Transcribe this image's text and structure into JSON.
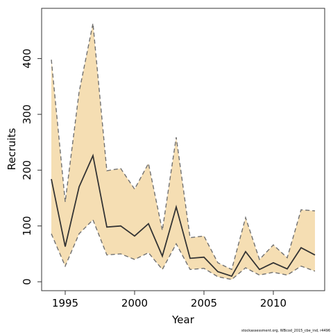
{
  "chart_data": {
    "type": "area",
    "xlabel": "Year",
    "ylabel": "Recruits",
    "xlim": [
      1993.3,
      2013.7
    ],
    "ylim": [
      -16,
      490
    ],
    "x_ticks": [
      1995,
      2000,
      2005,
      2010
    ],
    "y_ticks": [
      0,
      100,
      200,
      300,
      400
    ],
    "grid": false,
    "legend": "none",
    "x": [
      1994,
      1995,
      1996,
      1997,
      1998,
      1999,
      2000,
      2001,
      2002,
      2003,
      2004,
      2005,
      2006,
      2007,
      2008,
      2009,
      2010,
      2011,
      2012,
      2013
    ],
    "series": [
      {
        "role": "estimate",
        "values": [
          184,
          63,
          170,
          226,
          98,
          100,
          82,
          104,
          46,
          134,
          42,
          44,
          18,
          10,
          54,
          22,
          34,
          23,
          61,
          48
        ]
      },
      {
        "role": "upper",
        "values": [
          398,
          143,
          340,
          463,
          199,
          203,
          166,
          212,
          92,
          259,
          79,
          82,
          34,
          22,
          115,
          40,
          66,
          43,
          129,
          127
        ]
      },
      {
        "role": "lower",
        "values": [
          86,
          28,
          86,
          111,
          48,
          50,
          40,
          52,
          22,
          68,
          22,
          24,
          9,
          4,
          25,
          12,
          17,
          12,
          28,
          19
        ]
      }
    ],
    "colors": {
      "band": "#F5DEB3",
      "bound_line": "#707070",
      "estimate_line": "#333333"
    }
  },
  "footnote": "stockassessment.org, WBcod_2015_cbe_ind, r4496"
}
